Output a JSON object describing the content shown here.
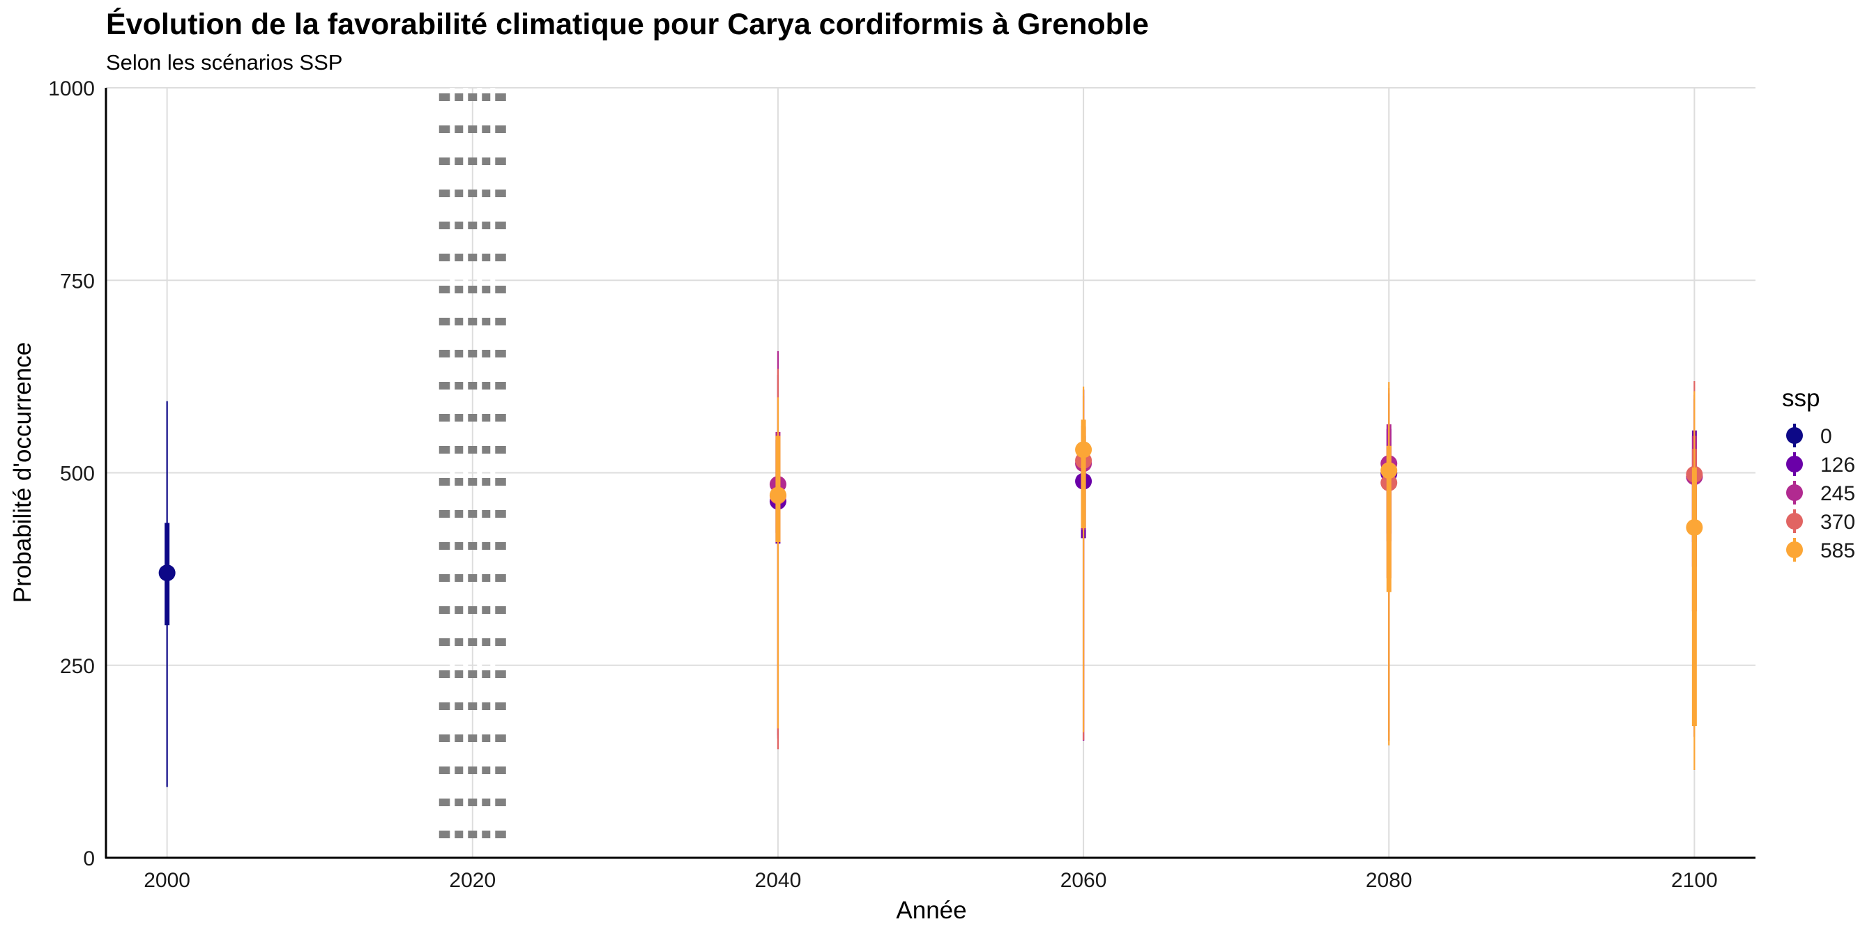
{
  "chart_data": {
    "type": "scatter",
    "title": "Évolution de la favorabilité climatique pour Carya cordiformis à Grenoble",
    "subtitle": "Selon les scénarios SSP",
    "xlabel": "Année",
    "ylabel": "Probabilité d'occurrence",
    "xlim": [
      1996,
      2104
    ],
    "ylim": [
      0,
      1000
    ],
    "x_ticks": [
      2000,
      2020,
      2040,
      2060,
      2080,
      2100
    ],
    "y_ticks": [
      0,
      250,
      500,
      750,
      1000
    ],
    "grid": true,
    "reference_line": {
      "x": 2020,
      "style": "dotted",
      "color": "#808080"
    },
    "legend": {
      "title": "ssp",
      "position": "right"
    },
    "series": [
      {
        "name": "0",
        "color": "#0d0887",
        "points": [
          {
            "x": 2000,
            "y": 370,
            "inner": [
              302,
              435
            ],
            "outer": [
              92,
              593
            ]
          }
        ]
      },
      {
        "name": "126",
        "color": "#6a00a8",
        "points": [
          {
            "x": 2040,
            "y": 463,
            "inner": [
              408,
              543
            ],
            "outer": [
              155,
              627
            ]
          },
          {
            "x": 2060,
            "y": 489,
            "inner": [
              415,
              548
            ],
            "outer": [
              152,
              608
            ]
          },
          {
            "x": 2080,
            "y": 499,
            "inner": [
              421,
              557
            ],
            "outer": [
              164,
              603
            ]
          },
          {
            "x": 2100,
            "y": 495,
            "inner": [
              410,
              555
            ],
            "outer": [
              170,
              596
            ]
          }
        ]
      },
      {
        "name": "245",
        "color": "#b12a90",
        "points": [
          {
            "x": 2040,
            "y": 485,
            "inner": [
              422,
              553
            ],
            "outer": [
              159,
              658
            ]
          },
          {
            "x": 2060,
            "y": 512,
            "inner": [
              426,
              561
            ],
            "outer": [
              152,
              608
            ]
          },
          {
            "x": 2080,
            "y": 512,
            "inner": [
              411,
              563
            ],
            "outer": [
              152,
              603
            ]
          },
          {
            "x": 2100,
            "y": 495,
            "inner": [
              378,
              548
            ],
            "outer": [
              157,
              601
            ]
          }
        ]
      },
      {
        "name": "370",
        "color": "#e16462",
        "points": [
          {
            "x": 2040,
            "y": 470,
            "inner": [
              410,
              548
            ],
            "outer": [
              141,
              635
            ]
          },
          {
            "x": 2060,
            "y": 516,
            "inner": [
              428,
              559
            ],
            "outer": [
              153,
              600
            ]
          },
          {
            "x": 2080,
            "y": 487,
            "inner": [
              363,
              535
            ],
            "outer": [
              152,
              610
            ]
          },
          {
            "x": 2100,
            "y": 498,
            "inner": [
              320,
              531
            ],
            "outer": [
              157,
              619
            ]
          }
        ]
      },
      {
        "name": "585",
        "color": "#fca636",
        "points": [
          {
            "x": 2040,
            "y": 471,
            "inner": [
              410,
              548
            ],
            "outer": [
              168,
              598
            ]
          },
          {
            "x": 2060,
            "y": 530,
            "inner": [
              428,
              569
            ],
            "outer": [
              163,
              612
            ]
          },
          {
            "x": 2080,
            "y": 503,
            "inner": [
              345,
              535
            ],
            "outer": [
              146,
              618
            ]
          },
          {
            "x": 2100,
            "y": 429,
            "inner": [
              171,
              507
            ],
            "outer": [
              114,
              606
            ]
          }
        ]
      }
    ]
  }
}
